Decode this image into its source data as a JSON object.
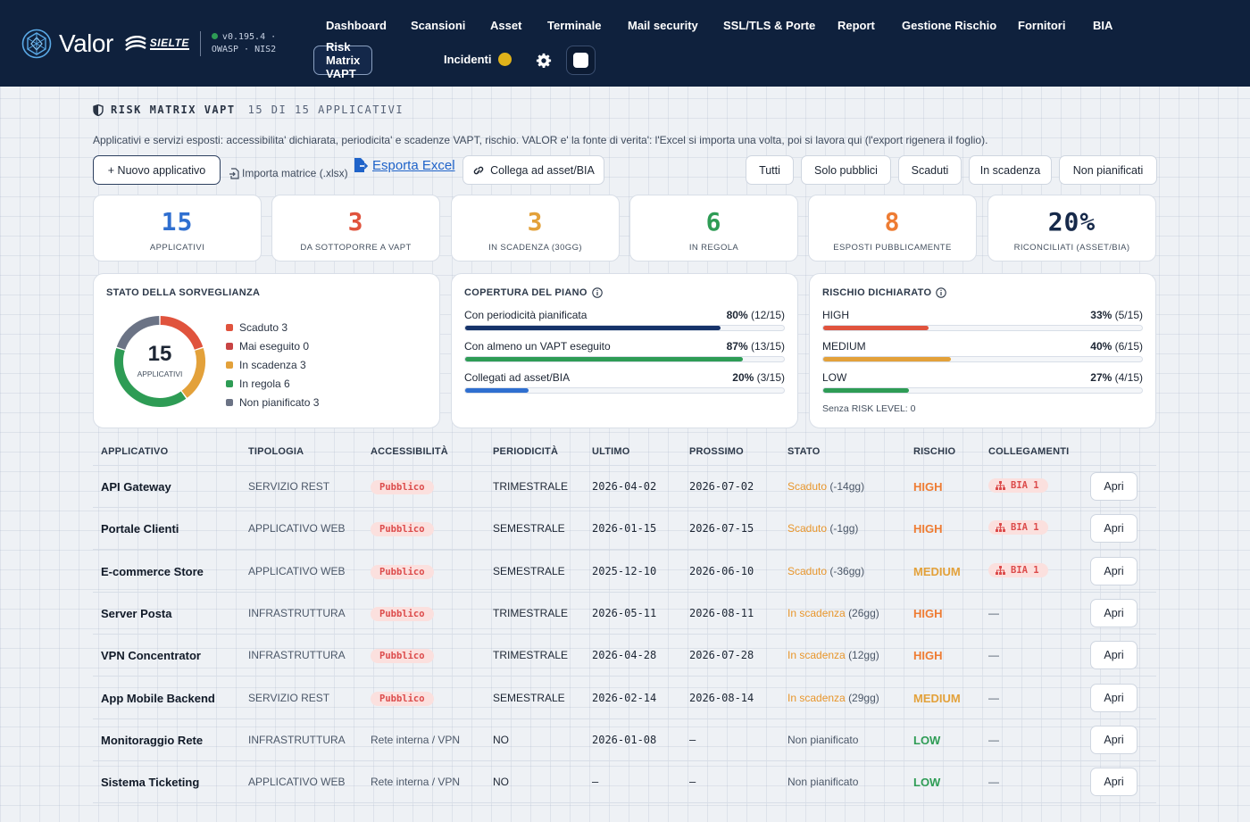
{
  "header": {
    "brand": "Valor",
    "partner": "SIELTE",
    "version_line1": "v0.195.4 ·",
    "version_line2": "OWASP · NIS2",
    "nav": [
      "Dashboard",
      "Scansioni",
      "Asset",
      "Terminale",
      "Mail security",
      "SSL/TLS & Porte",
      "Report",
      "Gestione Rischio",
      "Fornitori",
      "BIA"
    ],
    "active_nav": "Risk Matrix VAPT",
    "incidents_label": "Incidenti",
    "incident_color": "#e0b21a"
  },
  "page": {
    "title": "RISK MATRIX VAPT",
    "count": "15 DI 15 APPLICATIVI",
    "subtitle": "Applicativi e servizi esposti: accessibilita' dichiarata, periodicita' e scadenze VAPT, rischio. VALOR e' la fonte di verita': l'Excel si importa una volta, poi si lavora qui (l'export rigenera il foglio)."
  },
  "actions": {
    "new_app": "+ Nuovo applicativo",
    "import": "Importa matrice (.xlsx)",
    "export": "Esporta Excel",
    "link_assets": "Collega ad asset/BIA"
  },
  "filters": [
    "Tutti",
    "Solo pubblici",
    "Scaduti",
    "In scadenza",
    "Non pianificati"
  ],
  "kpis": [
    {
      "value": "15",
      "label": "APPLICATIVI",
      "color": "#2f6fd0"
    },
    {
      "value": "3",
      "label": "DA SOTTOPORRE A VAPT",
      "color": "#e0533d"
    },
    {
      "value": "3",
      "label": "IN SCADENZA (30GG)",
      "color": "#e3a13a"
    },
    {
      "value": "6",
      "label": "IN REGOLA",
      "color": "#2e9c55"
    },
    {
      "value": "8",
      "label": "ESPOSTI PUBBLICAMENTE",
      "color": "#ee7c33"
    },
    {
      "value": "20%",
      "label": "RICONCILIATI (ASSET/BIA)",
      "color": "#16294a"
    }
  ],
  "surveillance": {
    "title": "STATO DELLA SORVEGLIANZA",
    "total": "15",
    "total_label": "APPLICATIVI",
    "segments": [
      {
        "label": "Scaduto 3",
        "value": 3,
        "color": "#e0533d"
      },
      {
        "label": "Mai eseguito 0",
        "value": 0,
        "color": "#c84444"
      },
      {
        "label": "In scadenza 3",
        "value": 3,
        "color": "#e3a13a"
      },
      {
        "label": "In regola 6",
        "value": 6,
        "color": "#2e9c55"
      },
      {
        "label": "Non pianificato 3",
        "value": 3,
        "color": "#6b7385"
      }
    ]
  },
  "coverage": {
    "title": "COPERTURA DEL PIANO",
    "rows": [
      {
        "label": "Con periodicità pianificata",
        "pct": "80%",
        "frac": "(12/15)",
        "fraction": 0.8,
        "color": "#16336a"
      },
      {
        "label": "Con almeno un VAPT eseguito",
        "pct": "87%",
        "frac": "(13/15)",
        "fraction": 0.87,
        "color": "#2e9c55"
      },
      {
        "label": "Collegati ad asset/BIA",
        "pct": "20%",
        "frac": "(3/15)",
        "fraction": 0.2,
        "color": "#2f6fd0"
      }
    ]
  },
  "risk": {
    "title": "RISCHIO DICHIARATO",
    "rows": [
      {
        "label": "HIGH",
        "pct": "33%",
        "frac": "(5/15)",
        "fraction": 0.33,
        "color": "#e0533d"
      },
      {
        "label": "MEDIUM",
        "pct": "40%",
        "frac": "(6/15)",
        "fraction": 0.4,
        "color": "#e3a13a"
      },
      {
        "label": "LOW",
        "pct": "27%",
        "frac": "(4/15)",
        "fraction": 0.27,
        "color": "#2e9c55"
      }
    ],
    "note": "Senza RISK LEVEL: 0"
  },
  "table": {
    "headers": [
      "APPLICATIVO",
      "TIPOLOGIA",
      "ACCESSIBILITÀ",
      "PERIODICITÀ",
      "ULTIMO",
      "PROSSIMO",
      "STATO",
      "RISCHIO",
      "COLLEGAMENTI"
    ],
    "open_label": "Apri",
    "rows": [
      {
        "name": "API Gateway",
        "type": "SERVIZIO REST",
        "access": "Pubblico",
        "public": true,
        "period": "TRIMESTRALE",
        "last": "2026-04-02",
        "next": "2026-07-02",
        "status": "Scaduto",
        "status_detail": "(-14gg)",
        "risk": "HIGH",
        "link": "BIA 1"
      },
      {
        "name": "Portale Clienti",
        "type": "APPLICATIVO WEB",
        "access": "Pubblico",
        "public": true,
        "period": "SEMESTRALE",
        "last": "2026-01-15",
        "next": "2026-07-15",
        "status": "Scaduto",
        "status_detail": "(-1gg)",
        "risk": "HIGH",
        "link": "BIA 1"
      },
      {
        "name": "E-commerce Store",
        "type": "APPLICATIVO WEB",
        "access": "Pubblico",
        "public": true,
        "period": "SEMESTRALE",
        "last": "2025-12-10",
        "next": "2026-06-10",
        "status": "Scaduto",
        "status_detail": "(-36gg)",
        "risk": "MEDIUM",
        "link": "BIA 1"
      },
      {
        "name": "Server Posta",
        "type": "INFRASTRUTTURA",
        "access": "Pubblico",
        "public": true,
        "period": "TRIMESTRALE",
        "last": "2026-05-11",
        "next": "2026-08-11",
        "status": "In scadenza",
        "status_detail": "(26gg)",
        "risk": "HIGH",
        "link": "—"
      },
      {
        "name": "VPN Concentrator",
        "type": "INFRASTRUTTURA",
        "access": "Pubblico",
        "public": true,
        "period": "TRIMESTRALE",
        "last": "2026-04-28",
        "next": "2026-07-28",
        "status": "In scadenza",
        "status_detail": "(12gg)",
        "risk": "HIGH",
        "link": "—"
      },
      {
        "name": "App Mobile Backend",
        "type": "SERVIZIO REST",
        "access": "Pubblico",
        "public": true,
        "period": "SEMESTRALE",
        "last": "2026-02-14",
        "next": "2026-08-14",
        "status": "In scadenza",
        "status_detail": "(29gg)",
        "risk": "MEDIUM",
        "link": "—"
      },
      {
        "name": "Monitoraggio Rete",
        "type": "INFRASTRUTTURA",
        "access": "Rete interna / VPN",
        "public": false,
        "period": "NO",
        "last": "2026-01-08",
        "next": "—",
        "status": "Non pianificato",
        "status_detail": "",
        "risk": "LOW",
        "link": "—"
      },
      {
        "name": "Sistema Ticketing",
        "type": "APPLICATIVO WEB",
        "access": "Rete interna / VPN",
        "public": false,
        "period": "NO",
        "last": "—",
        "next": "—",
        "status": "Non pianificato",
        "status_detail": "",
        "risk": "LOW",
        "link": "—"
      }
    ],
    "risk_colors": {
      "HIGH": "#ee7c33",
      "MEDIUM": "#e3a13a",
      "LOW": "#2e9c55"
    }
  }
}
